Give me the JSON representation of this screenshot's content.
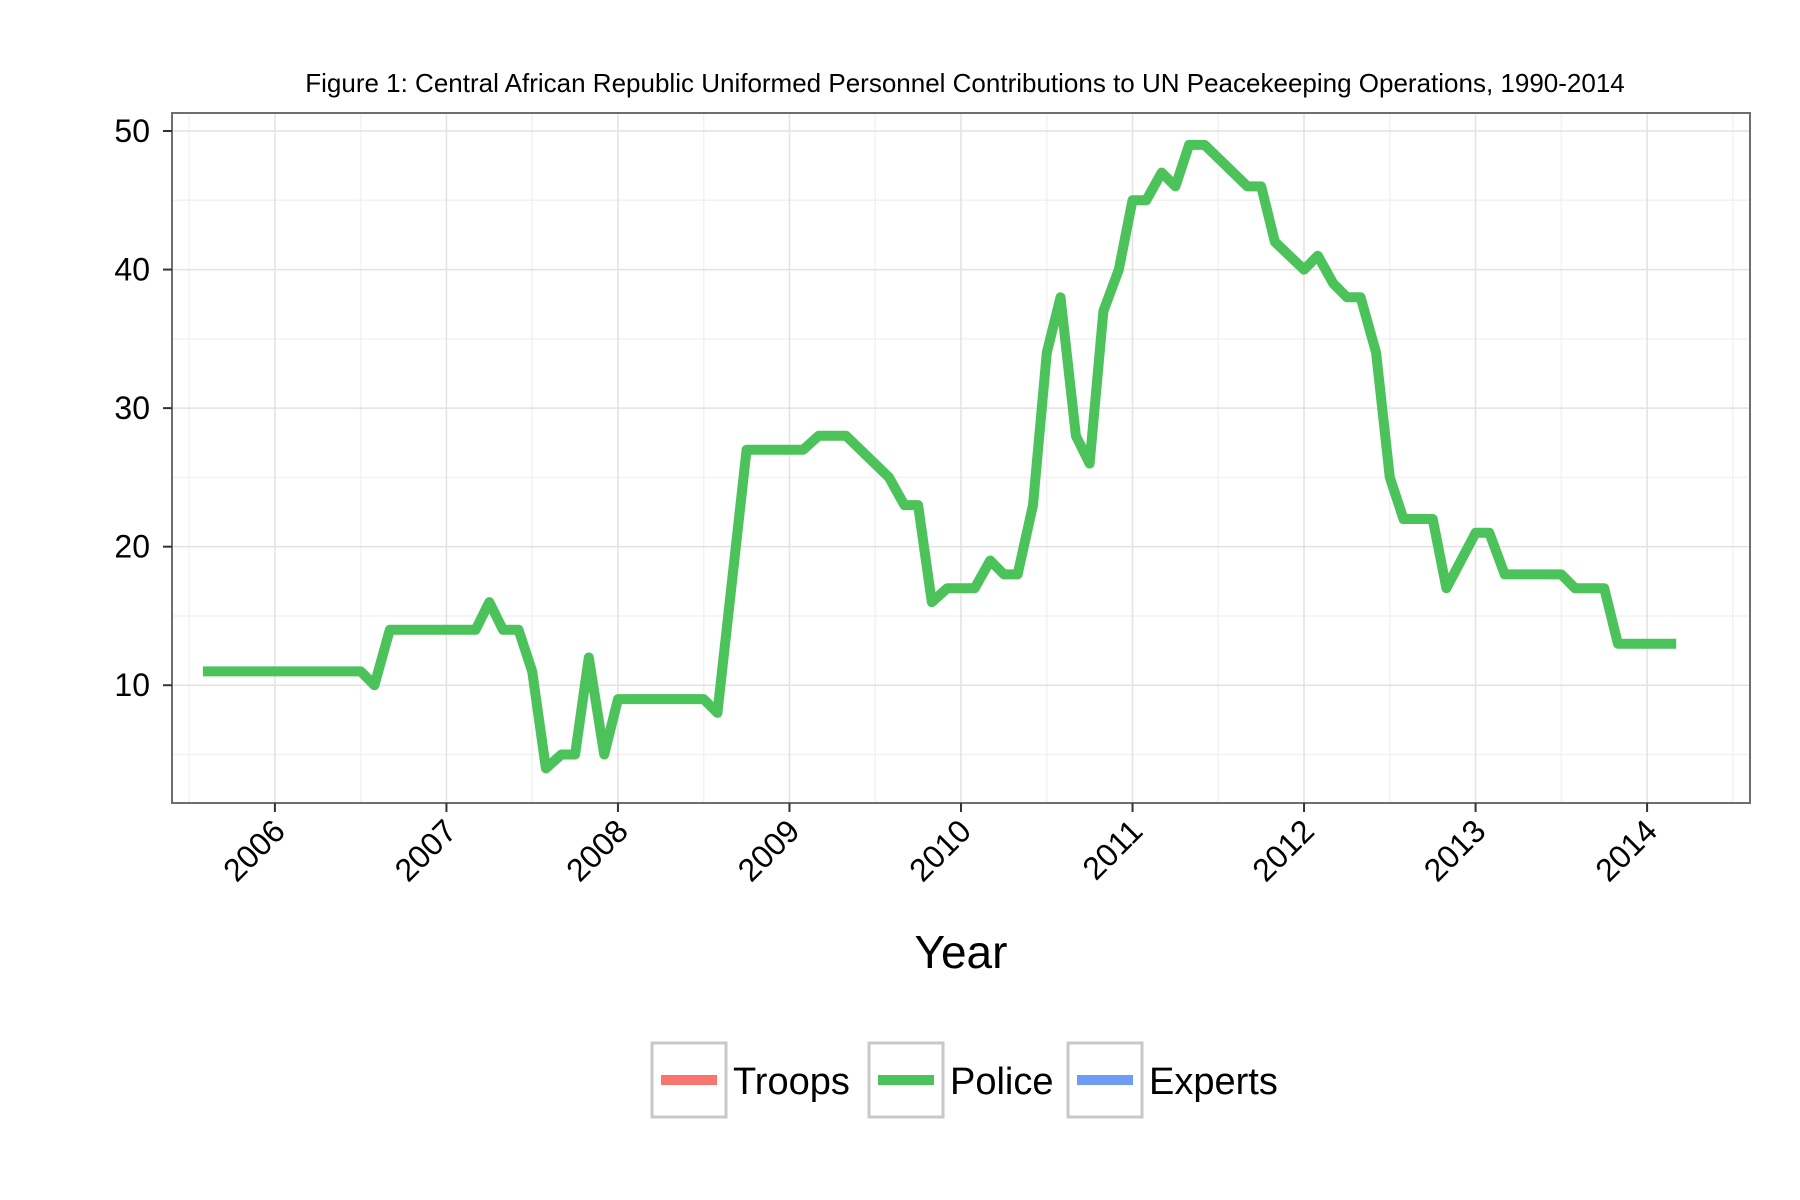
{
  "chart_data": {
    "type": "line",
    "title": "Figure 1: Central African Republic Uniformed Personnel Contributions to UN Peacekeeping Operations, 1990-2014",
    "xlabel": "Year",
    "ylabel": "",
    "xlim": [
      2005.4,
      2014.6
    ],
    "ylim": [
      1.5,
      51.3
    ],
    "x_ticks": [
      {
        "value": 2006,
        "label": "2006"
      },
      {
        "value": 2007,
        "label": "2007"
      },
      {
        "value": 2008,
        "label": "2008"
      },
      {
        "value": 2009,
        "label": "2009"
      },
      {
        "value": 2010,
        "label": "2010"
      },
      {
        "value": 2011,
        "label": "2011"
      },
      {
        "value": 2012,
        "label": "2012"
      },
      {
        "value": 2013,
        "label": "2013"
      },
      {
        "value": 2014,
        "label": "2014"
      }
    ],
    "y_ticks": [
      {
        "value": 10,
        "label": "10"
      },
      {
        "value": 20,
        "label": "20"
      },
      {
        "value": 30,
        "label": "30"
      },
      {
        "value": 40,
        "label": "40"
      },
      {
        "value": 50,
        "label": "50"
      }
    ],
    "grid": true,
    "legend_position": "bottom",
    "legend": [
      {
        "name": "Troops",
        "color": "#F8766D"
      },
      {
        "name": "Police",
        "color": "#4CC25A"
      },
      {
        "name": "Experts",
        "color": "#6E9CF5"
      }
    ],
    "series": [
      {
        "name": "Police",
        "color": "#4CC25A",
        "points": [
          [
            2005.58,
            11
          ],
          [
            2006.5,
            11
          ],
          [
            2006.58,
            10
          ],
          [
            2006.67,
            14
          ],
          [
            2007.0,
            14
          ],
          [
            2007.17,
            14
          ],
          [
            2007.25,
            16
          ],
          [
            2007.33,
            14
          ],
          [
            2007.42,
            14
          ],
          [
            2007.5,
            11
          ],
          [
            2007.58,
            4
          ],
          [
            2007.67,
            5
          ],
          [
            2007.75,
            5
          ],
          [
            2007.83,
            12
          ],
          [
            2007.92,
            5
          ],
          [
            2008.0,
            9
          ],
          [
            2008.5,
            9
          ],
          [
            2008.58,
            8
          ],
          [
            2008.75,
            27
          ],
          [
            2009.08,
            27
          ],
          [
            2009.17,
            28
          ],
          [
            2009.33,
            28
          ],
          [
            2009.58,
            25
          ],
          [
            2009.67,
            23
          ],
          [
            2009.75,
            23
          ],
          [
            2009.83,
            16
          ],
          [
            2009.92,
            17
          ],
          [
            2010.08,
            17
          ],
          [
            2010.17,
            19
          ],
          [
            2010.25,
            18
          ],
          [
            2010.33,
            18
          ],
          [
            2010.42,
            23
          ],
          [
            2010.5,
            34
          ],
          [
            2010.58,
            38
          ],
          [
            2010.67,
            28
          ],
          [
            2010.75,
            26
          ],
          [
            2010.83,
            37
          ],
          [
            2010.92,
            40
          ],
          [
            2011.0,
            45
          ],
          [
            2011.08,
            45
          ],
          [
            2011.17,
            47
          ],
          [
            2011.25,
            46
          ],
          [
            2011.33,
            49
          ],
          [
            2011.42,
            49
          ],
          [
            2011.67,
            46
          ],
          [
            2011.75,
            46
          ],
          [
            2011.83,
            42
          ],
          [
            2012.0,
            40
          ],
          [
            2012.08,
            41
          ],
          [
            2012.17,
            39
          ],
          [
            2012.25,
            38
          ],
          [
            2012.33,
            38
          ],
          [
            2012.42,
            34
          ],
          [
            2012.5,
            25
          ],
          [
            2012.58,
            22
          ],
          [
            2012.75,
            22
          ],
          [
            2012.83,
            17
          ],
          [
            2013.0,
            21
          ],
          [
            2013.08,
            21
          ],
          [
            2013.17,
            18
          ],
          [
            2013.5,
            18
          ],
          [
            2013.58,
            17
          ],
          [
            2013.75,
            17
          ],
          [
            2013.83,
            13
          ],
          [
            2014.17,
            13
          ]
        ]
      }
    ]
  }
}
